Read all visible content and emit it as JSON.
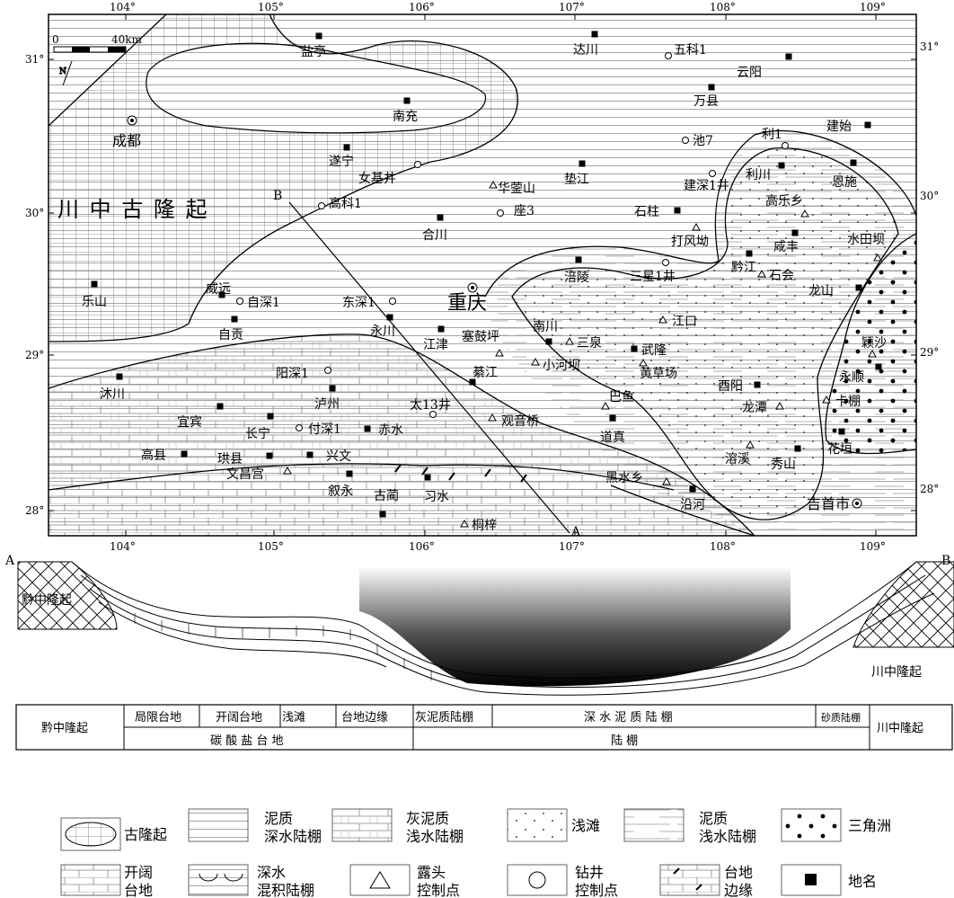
{
  "map": {
    "scale_zero": "0",
    "scale_label": "40km",
    "north": "N",
    "lon_labels": [
      "104°",
      "105°",
      "106°",
      "107°",
      "108°",
      "109°"
    ],
    "lat_labels": [
      "31°",
      "30°",
      "29°",
      "28°"
    ],
    "region_label": "川 中 古 隆 起",
    "section_start": "A",
    "section_end": "B",
    "places": [
      {
        "id": "yanting",
        "label": "盐亭",
        "type": "place"
      },
      {
        "id": "dachuan",
        "label": "达川",
        "type": "place"
      },
      {
        "id": "wuke1",
        "label": "五科1",
        "type": "well"
      },
      {
        "id": "yunyang",
        "label": "云阳",
        "type": "place"
      },
      {
        "id": "nanchong",
        "label": "南充",
        "type": "place"
      },
      {
        "id": "wanxian",
        "label": "万县",
        "type": "place"
      },
      {
        "id": "chengdu",
        "label": "成都",
        "type": "city"
      },
      {
        "id": "jianshi",
        "label": "建始",
        "type": "place"
      },
      {
        "id": "chi7",
        "label": "池7",
        "type": "well"
      },
      {
        "id": "li1",
        "label": "利1",
        "type": "well"
      },
      {
        "id": "suining",
        "label": "遂宁",
        "type": "place"
      },
      {
        "id": "nvji",
        "label": "女基井",
        "type": "well"
      },
      {
        "id": "dianjiang",
        "label": "垫江",
        "type": "place"
      },
      {
        "id": "enshi",
        "label": "恩施",
        "type": "place"
      },
      {
        "id": "lichuan",
        "label": "利川",
        "type": "place"
      },
      {
        "id": "jianshen1",
        "label": "建深1井",
        "type": "well"
      },
      {
        "id": "huayingshan",
        "label": "华蓥山",
        "type": "outcrop"
      },
      {
        "id": "gaoleixiang",
        "label": "高乐乡",
        "type": "outcrop"
      },
      {
        "id": "gaoke1",
        "label": "高科1",
        "type": "well"
      },
      {
        "id": "zuo3",
        "label": "座3",
        "type": "well"
      },
      {
        "id": "shizhu",
        "label": "石柱",
        "type": "place"
      },
      {
        "id": "hechuan",
        "label": "合川",
        "type": "place"
      },
      {
        "id": "xianfeng",
        "label": "咸丰",
        "type": "place"
      },
      {
        "id": "shuitianba",
        "label": "水田坝",
        "type": "outcrop"
      },
      {
        "id": "dafengao",
        "label": "打风坳",
        "type": "outcrop"
      },
      {
        "id": "qianjiang",
        "label": "黔江",
        "type": "place"
      },
      {
        "id": "shihui",
        "label": "石会",
        "type": "outcrop"
      },
      {
        "id": "leshan",
        "label": "乐山",
        "type": "place"
      },
      {
        "id": "weiyuan",
        "label": "威远",
        "type": "place"
      },
      {
        "id": "zishen1",
        "label": "自深1",
        "type": "well"
      },
      {
        "id": "fuling",
        "label": "涪陵",
        "type": "place"
      },
      {
        "id": "sanxing1",
        "label": "三星1井",
        "type": "well"
      },
      {
        "id": "longshan",
        "label": "龙山",
        "type": "place"
      },
      {
        "id": "dongshen1",
        "label": "东深1",
        "type": "well"
      },
      {
        "id": "chongqing",
        "label": "重庆",
        "type": "city"
      },
      {
        "id": "zigong",
        "label": "自贡",
        "type": "place"
      },
      {
        "id": "nanchuan",
        "label": "南川",
        "type": "place"
      },
      {
        "id": "jiangkou",
        "label": "江口",
        "type": "outcrop"
      },
      {
        "id": "yongchuan",
        "label": "永川",
        "type": "place"
      },
      {
        "id": "jiangjin",
        "label": "江津",
        "type": "place"
      },
      {
        "id": "saigupin",
        "label": "塞鼓坪",
        "type": "outcrop"
      },
      {
        "id": "sanquan",
        "label": "三泉",
        "type": "outcrop"
      },
      {
        "id": "wulong",
        "label": "武隆",
        "type": "place"
      },
      {
        "id": "yingsha",
        "label": "颖沙",
        "type": "outcrop"
      },
      {
        "id": "huangcaochang",
        "label": "黄草场",
        "type": "outcrop"
      },
      {
        "id": "xiaoheba",
        "label": "小河坝",
        "type": "outcrop"
      },
      {
        "id": "yongshun",
        "label": "永顺",
        "type": "place"
      },
      {
        "id": "muchuan",
        "label": "沐川",
        "type": "place"
      },
      {
        "id": "yangshen1",
        "label": "阳深1",
        "type": "well"
      },
      {
        "id": "qijiang",
        "label": "綦江",
        "type": "place"
      },
      {
        "id": "youyang",
        "label": "酉阳",
        "type": "place"
      },
      {
        "id": "luzhou",
        "label": "泸州",
        "type": "place"
      },
      {
        "id": "kapeng",
        "label": "卡棚",
        "type": "outcrop"
      },
      {
        "id": "tai13",
        "label": "太13井",
        "type": "well"
      },
      {
        "id": "bayu",
        "label": "巴鱼",
        "type": "outcrop"
      },
      {
        "id": "longtan",
        "label": "龙潭",
        "type": "outcrop"
      },
      {
        "id": "yibin",
        "label": "宜宾",
        "type": "place"
      },
      {
        "id": "changning",
        "label": "长宁",
        "type": "place"
      },
      {
        "id": "fushen1",
        "label": "付深1",
        "type": "well"
      },
      {
        "id": "chishui",
        "label": "赤水",
        "type": "place"
      },
      {
        "id": "guanyinqiao",
        "label": "观音桥",
        "type": "outcrop"
      },
      {
        "id": "daozhen",
        "label": "道真",
        "type": "place"
      },
      {
        "id": "huayuan",
        "label": "花垣",
        "type": "place"
      },
      {
        "id": "gongxian",
        "label": "珙县",
        "type": "place"
      },
      {
        "id": "xingwen",
        "label": "兴文",
        "type": "place"
      },
      {
        "id": "rongxi",
        "label": "溶溪",
        "type": "outcrop"
      },
      {
        "id": "xiushan",
        "label": "秀山",
        "type": "place"
      },
      {
        "id": "gaoxian",
        "label": "高县",
        "type": "place"
      },
      {
        "id": "wenchanggong",
        "label": "文昌宫",
        "type": "outcrop"
      },
      {
        "id": "xuyong",
        "label": "叙永",
        "type": "place"
      },
      {
        "id": "xishui",
        "label": "习水",
        "type": "place"
      },
      {
        "id": "heishuixiang",
        "label": "黑水乡",
        "type": "outcrop"
      },
      {
        "id": "yanhe",
        "label": "沿河",
        "type": "place"
      },
      {
        "id": "gulin",
        "label": "古蔺",
        "type": "place"
      },
      {
        "id": "tongzi",
        "label": "桐梓",
        "type": "outcrop"
      },
      {
        "id": "jishou",
        "label": "吉首市",
        "type": "city"
      }
    ]
  },
  "section": {
    "left_end": "A",
    "right_end": "B",
    "left_label": "黔中隆起",
    "right_label": "川中隆起"
  },
  "facies_table": {
    "left": "黔中隆起",
    "right": "川中隆起",
    "sub": [
      "局限台地",
      "开阔台地",
      "浅滩",
      "台地边缘",
      "灰泥质陆棚",
      "深 水 泥 质 陆 棚",
      "砂质陆棚"
    ],
    "main": [
      "碳 酸 盐 台 地",
      "陆 棚"
    ]
  },
  "legend": [
    {
      "name": "古隆起",
      "label": "古隆起"
    },
    {
      "name": "mud-deep-shelf",
      "label": "泥质\n深水陆棚"
    },
    {
      "name": "lime-mud-shallow-shelf",
      "label": "灰泥质\n浅水陆棚"
    },
    {
      "name": "shoal",
      "label": "浅滩"
    },
    {
      "name": "mud-shallow-shelf",
      "label": "泥质\n浅水陆棚"
    },
    {
      "name": "delta",
      "label": "三角洲"
    },
    {
      "name": "open-platform",
      "label": "开阔\n台地"
    },
    {
      "name": "deep-mixed-shelf",
      "label": "深水\n混积陆棚"
    },
    {
      "name": "outcrop-point",
      "label": "露头\n控制点"
    },
    {
      "name": "well-point",
      "label": "钻井\n控制点"
    },
    {
      "name": "platform-margin",
      "label": "台地\n边缘"
    },
    {
      "name": "place-name",
      "label": "地名"
    }
  ]
}
